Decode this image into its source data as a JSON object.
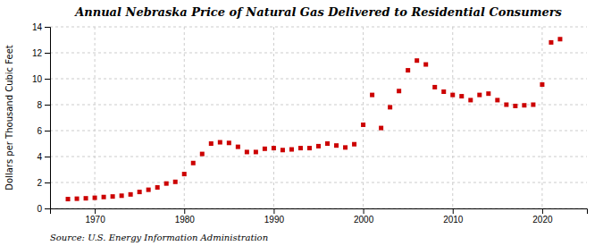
{
  "chart_data": {
    "type": "scatter",
    "title": "Annual Nebraska Price of Natural Gas Delivered to Residential Consumers",
    "ylabel": "Dollars per Thousand Cubic Feet",
    "source": "Source: U.S. Energy Information Administration",
    "color": "#cc0000",
    "marker": "square",
    "x": [
      1967,
      1968,
      1969,
      1970,
      1971,
      1972,
      1973,
      1974,
      1975,
      1976,
      1977,
      1978,
      1979,
      1980,
      1981,
      1982,
      1983,
      1984,
      1985,
      1986,
      1987,
      1988,
      1989,
      1990,
      1991,
      1992,
      1993,
      1994,
      1995,
      1996,
      1997,
      1998,
      1999,
      2000,
      2001,
      2002,
      2003,
      2004,
      2005,
      2006,
      2007,
      2008,
      2009,
      2010,
      2011,
      2012,
      2013,
      2014,
      2015,
      2016,
      2017,
      2018,
      2019,
      2020,
      2021,
      2022
    ],
    "values": [
      0.72,
      0.75,
      0.78,
      0.82,
      0.88,
      0.92,
      0.98,
      1.08,
      1.27,
      1.44,
      1.62,
      1.92,
      2.05,
      2.65,
      3.5,
      4.2,
      5.0,
      5.1,
      5.05,
      4.75,
      4.35,
      4.35,
      4.6,
      4.65,
      4.5,
      4.55,
      4.65,
      4.65,
      4.8,
      5.0,
      4.85,
      4.7,
      4.95,
      6.45,
      8.75,
      6.2,
      7.8,
      9.05,
      10.65,
      11.4,
      11.1,
      9.35,
      9.0,
      8.75,
      8.65,
      8.35,
      8.75,
      8.85,
      8.35,
      8.0,
      7.9,
      7.95,
      8.0,
      9.55,
      12.8,
      13.05
    ],
    "xlim": [
      1965,
      2025
    ],
    "ylim": [
      0,
      14
    ],
    "xticks": [
      1970,
      1980,
      1990,
      2000,
      2010,
      2020
    ],
    "yticks": [
      0,
      2,
      4,
      6,
      8,
      10,
      12,
      14
    ],
    "grid": true
  }
}
